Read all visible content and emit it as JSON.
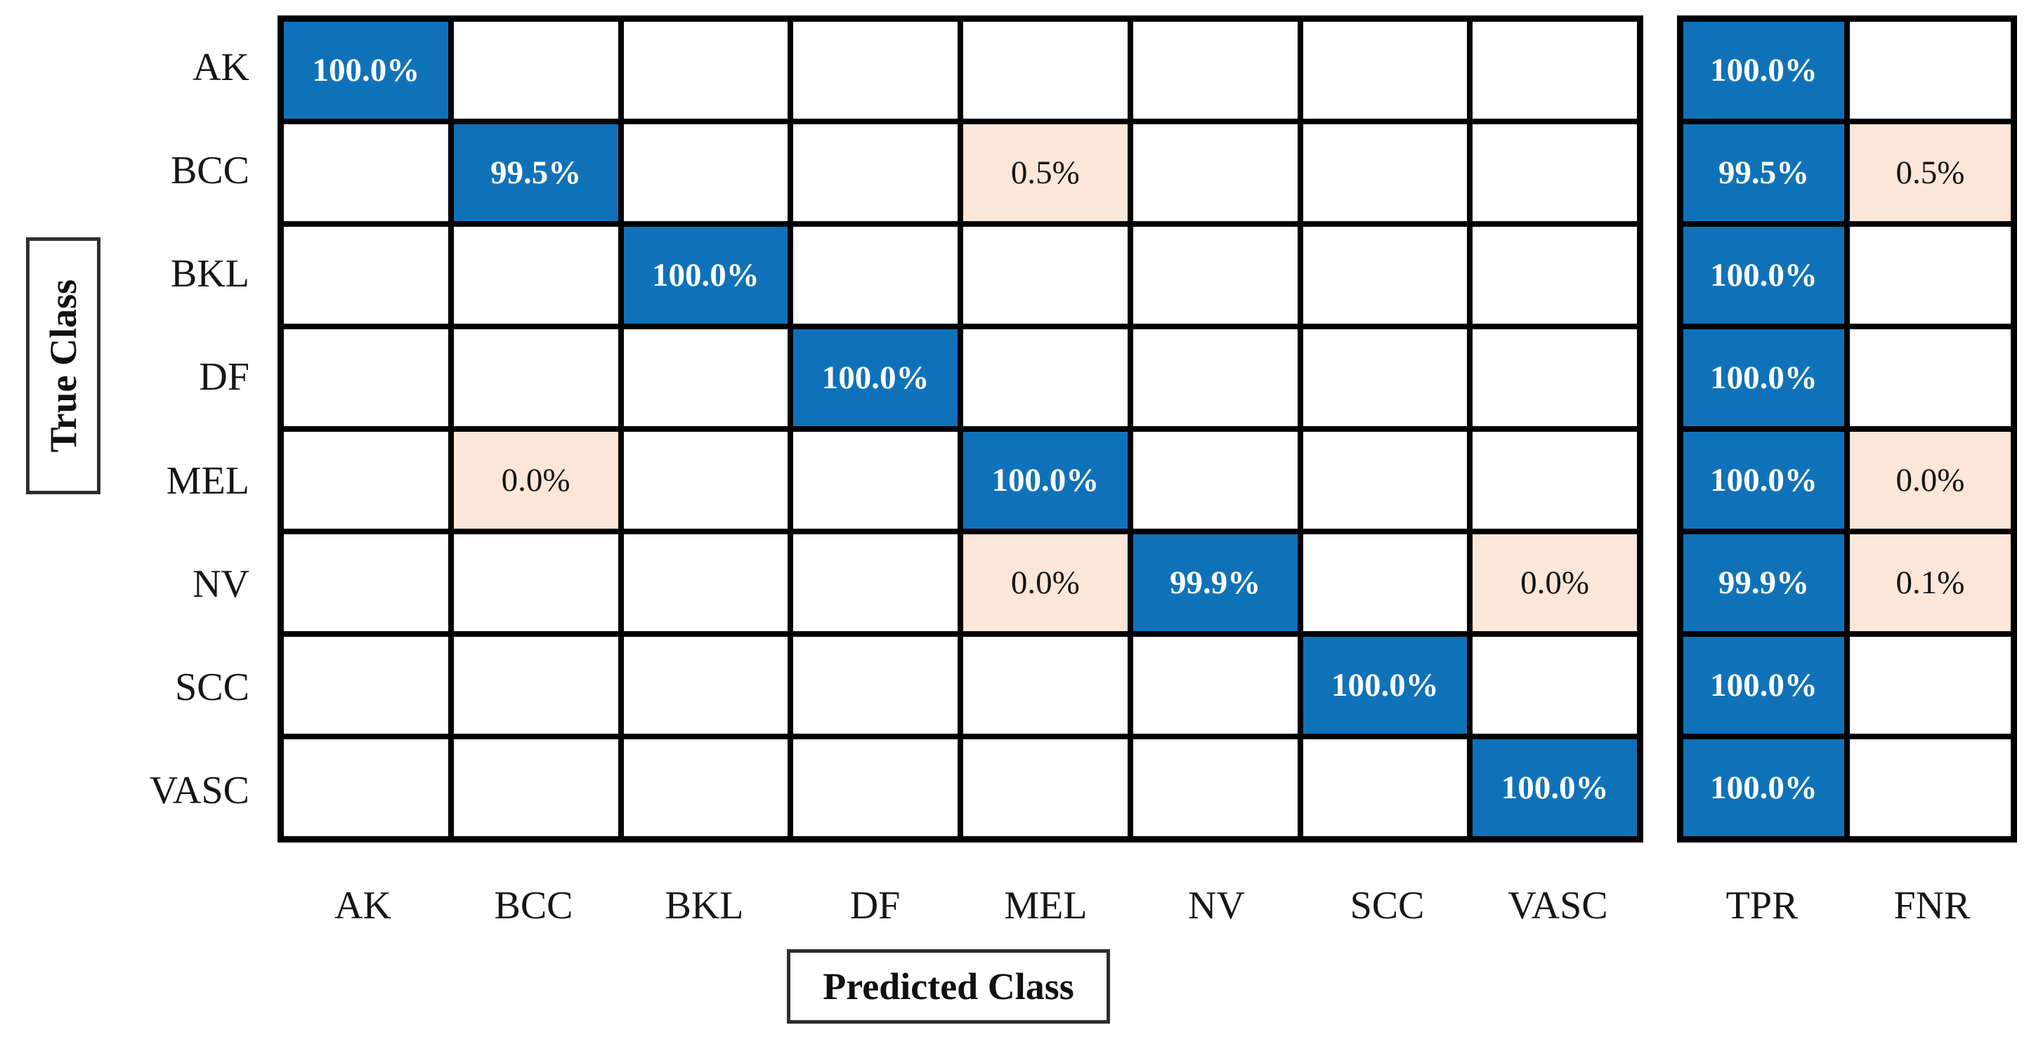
{
  "chart_data": {
    "type": "heatmap",
    "subtype": "confusion-matrix",
    "title": "",
    "xlabel": "Predicted Class",
    "ylabel": "True Class",
    "classes": [
      "AK",
      "BCC",
      "BKL",
      "DF",
      "MEL",
      "NV",
      "SCC",
      "VASC"
    ],
    "summary_columns": [
      "TPR",
      "FNR"
    ],
    "rows": [
      {
        "label": "AK",
        "cells": [
          "100.0%",
          null,
          null,
          null,
          null,
          null,
          null,
          null
        ],
        "tpr": "100.0%",
        "fnr": null
      },
      {
        "label": "BCC",
        "cells": [
          null,
          "99.5%",
          null,
          null,
          "0.5%",
          null,
          null,
          null
        ],
        "tpr": "99.5%",
        "fnr": "0.5%"
      },
      {
        "label": "BKL",
        "cells": [
          null,
          null,
          "100.0%",
          null,
          null,
          null,
          null,
          null
        ],
        "tpr": "100.0%",
        "fnr": null
      },
      {
        "label": "DF",
        "cells": [
          null,
          null,
          null,
          "100.0%",
          null,
          null,
          null,
          null
        ],
        "tpr": "100.0%",
        "fnr": null
      },
      {
        "label": "MEL",
        "cells": [
          null,
          "0.0%",
          null,
          null,
          "100.0%",
          null,
          null,
          null
        ],
        "tpr": "100.0%",
        "fnr": "0.0%"
      },
      {
        "label": "NV",
        "cells": [
          null,
          null,
          null,
          null,
          "0.0%",
          "99.9%",
          null,
          "0.0%"
        ],
        "tpr": "99.9%",
        "fnr": "0.1%"
      },
      {
        "label": "SCC",
        "cells": [
          null,
          null,
          null,
          null,
          null,
          null,
          "100.0%",
          null
        ],
        "tpr": "100.0%",
        "fnr": null
      },
      {
        "label": "VASC",
        "cells": [
          null,
          null,
          null,
          null,
          null,
          null,
          null,
          "100.0%"
        ],
        "tpr": "100.0%",
        "fnr": null
      }
    ],
    "colors": {
      "diagonal_fill": "#0f72b9",
      "off_diagonal_fill": "#fbe6d8",
      "grid_line": "#000000",
      "diagonal_text": "#ffffff",
      "off_diagonal_text": "#141414",
      "label_text": "#161616"
    },
    "layout": {
      "legend": "none",
      "grid": "on",
      "value_format": "percent-1dp"
    }
  }
}
